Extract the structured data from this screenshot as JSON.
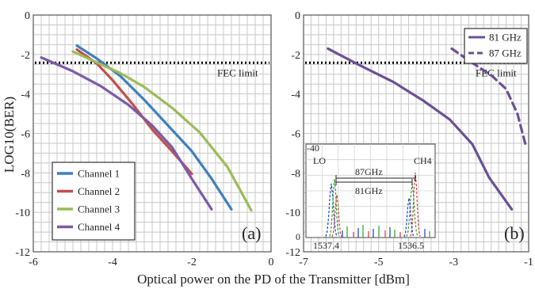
{
  "figure": {
    "xlabel": "Optical power on the PD of the Transmitter [dBm]",
    "ylabel": "LOG10(BER)"
  },
  "colors": {
    "channel_1": "#3f7fbf",
    "channel_2": "#c0504d",
    "channel_3": "#9bbb59",
    "channel_4": "#7b5ba6",
    "ghz": "#6a5095",
    "fec": "#000000"
  },
  "chart_data": [
    {
      "panel": "(a)",
      "type": "line",
      "xlim": [
        -6,
        0
      ],
      "ylim": [
        -12,
        0
      ],
      "xticks": [
        "-6",
        "-4",
        "-2",
        "0"
      ],
      "yticks": [
        "0",
        "-2",
        "-4",
        "-6",
        "-8",
        "-10",
        "-12"
      ],
      "grid": true,
      "legend_position": "bottom-left",
      "fec_limit": {
        "label": "FEC limit",
        "y": -2.42
      },
      "series": [
        {
          "name": "Channel 1",
          "color": "#3f7fbf",
          "x": [
            -4.9,
            -4.4,
            -3.8,
            -3.2,
            -2.6,
            -2.0,
            -1.5,
            -1.0
          ],
          "y": [
            -1.55,
            -2.2,
            -3.1,
            -4.3,
            -5.6,
            -6.9,
            -8.3,
            -9.85
          ]
        },
        {
          "name": "Channel 2",
          "color": "#c0504d",
          "x": [
            -4.9,
            -4.4,
            -4.0,
            -3.5,
            -3.0,
            -2.5,
            -2.0
          ],
          "y": [
            -1.75,
            -2.45,
            -3.3,
            -4.5,
            -5.8,
            -6.9,
            -8.05
          ]
        },
        {
          "name": "Channel 3",
          "color": "#9bbb59",
          "x": [
            -5.0,
            -4.4,
            -3.8,
            -3.2,
            -2.5,
            -1.8,
            -1.1,
            -0.5
          ],
          "y": [
            -1.85,
            -2.4,
            -2.95,
            -3.65,
            -4.7,
            -5.95,
            -7.7,
            -9.9
          ]
        },
        {
          "name": "Channel 4",
          "color": "#7b5ba6",
          "x": [
            -5.8,
            -5.0,
            -4.3,
            -3.6,
            -3.0,
            -2.5,
            -2.0,
            -1.5
          ],
          "y": [
            -2.15,
            -2.85,
            -3.6,
            -4.55,
            -5.6,
            -6.7,
            -8.3,
            -9.85
          ]
        }
      ]
    },
    {
      "panel": "(b)",
      "type": "line",
      "xlim": [
        -7,
        -1
      ],
      "ylim": [
        -12,
        0
      ],
      "xticks": [
        "-7",
        "-5",
        "-3",
        "-1"
      ],
      "yticks": [
        "0",
        "-2",
        "-4",
        "-6",
        "-8",
        "-10",
        "-12"
      ],
      "grid": true,
      "legend_position": "top-right",
      "fec_limit": {
        "label": "FEC limit",
        "y": -2.42
      },
      "series": [
        {
          "name": "81 GHz",
          "color": "#6a5095",
          "dash": false,
          "x": [
            -6.35,
            -5.5,
            -4.6,
            -3.8,
            -3.1,
            -2.5,
            -2.05,
            -1.45
          ],
          "y": [
            -1.7,
            -2.55,
            -3.4,
            -4.35,
            -5.3,
            -6.55,
            -8.25,
            -9.85
          ]
        },
        {
          "name": "87 GHz",
          "color": "#6a5095",
          "dash": true,
          "x": [
            -3.05,
            -2.6,
            -2.0,
            -1.6,
            -1.3,
            -1.08
          ],
          "y": [
            -1.7,
            -2.3,
            -3.05,
            -3.75,
            -5.0,
            -6.6
          ]
        }
      ],
      "inset": {
        "type": "spectrum",
        "y_top_label": "-40",
        "y_bottom_label": "0",
        "x_left_label": "1537.4",
        "x_right_label": "1536.5",
        "peak_left_label": "LO",
        "peak_right_label": "CH4",
        "arrow_top_label": "87GHz",
        "arrow_bottom_label": "81GHz"
      }
    }
  ]
}
